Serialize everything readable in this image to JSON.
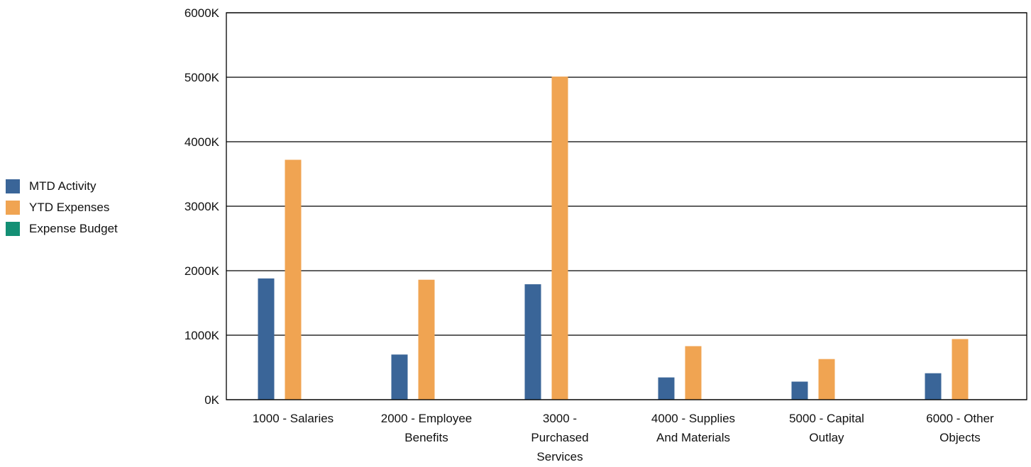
{
  "chart_data": {
    "type": "bar",
    "title": "",
    "xlabel": "",
    "ylabel": "",
    "ylim": [
      0,
      6000
    ],
    "y_ticks": [
      0,
      1000,
      2000,
      3000,
      4000,
      5000,
      6000
    ],
    "y_tick_labels": [
      "0K",
      "1000K",
      "2000K",
      "3000K",
      "4000K",
      "5000K",
      "6000K"
    ],
    "grid": true,
    "legend_position": "left",
    "categories": [
      [
        "1000 - Salaries"
      ],
      [
        "2000 - Employee",
        "Benefits"
      ],
      [
        "3000 -",
        "Purchased",
        "Services"
      ],
      [
        "4000 - Supplies",
        "And Materials"
      ],
      [
        "5000 - Capital",
        "Outlay"
      ],
      [
        "6000 - Other",
        "Objects"
      ]
    ],
    "series": [
      {
        "name": "MTD Activity",
        "color": "#3a6598",
        "values": [
          1880,
          700,
          1790,
          345,
          280,
          410
        ]
      },
      {
        "name": "YTD Expenses",
        "color": "#f0a452",
        "values": [
          3720,
          1860,
          5010,
          830,
          630,
          940
        ]
      },
      {
        "name": "Expense Budget",
        "color": "#138f74",
        "values": [
          0,
          0,
          0,
          0,
          0,
          0
        ]
      }
    ]
  }
}
